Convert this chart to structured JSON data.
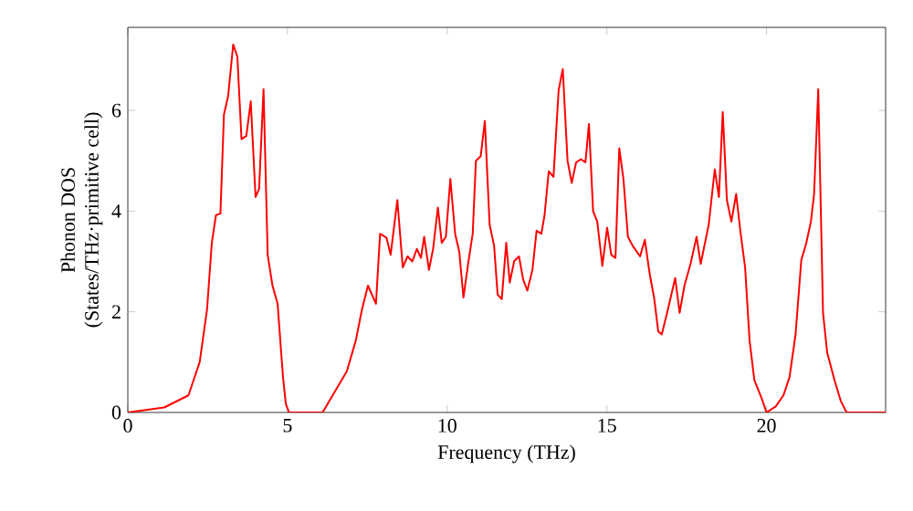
{
  "chart_data": {
    "type": "line",
    "xlabel": "Frequency (THz)",
    "ylabel": "Phonon DOS (States/THz·primitive cell)",
    "xlim": [
      0,
      23.73
    ],
    "ylim": [
      0,
      7.65
    ],
    "xticks": [
      0,
      5,
      10,
      15,
      20
    ],
    "yticks": [
      0,
      2,
      4,
      6
    ],
    "marker": "none",
    "line_style": "solid",
    "series": [
      {
        "color": "#ff0000",
        "x": [
          0,
          1.14,
          1.9,
          2.25,
          2.48,
          2.63,
          2.76,
          2.9,
          3.01,
          3.14,
          3.3,
          3.43,
          3.56,
          3.71,
          3.85,
          4.0,
          4.11,
          4.25,
          4.38,
          4.53,
          4.69,
          4.86,
          4.95,
          5.05,
          6.1,
          6.86,
          7.14,
          7.33,
          7.52,
          7.77,
          7.9,
          8.1,
          8.23,
          8.44,
          8.61,
          8.76,
          8.91,
          9.05,
          9.18,
          9.28,
          9.43,
          9.56,
          9.71,
          9.83,
          9.96,
          10.1,
          10.25,
          10.38,
          10.51,
          10.67,
          10.8,
          10.9,
          11.05,
          11.18,
          11.33,
          11.47,
          11.58,
          11.71,
          11.85,
          11.96,
          12.1,
          12.25,
          12.38,
          12.51,
          12.67,
          12.8,
          12.95,
          13.05,
          13.18,
          13.33,
          13.49,
          13.62,
          13.77,
          13.9,
          14.04,
          14.19,
          14.33,
          14.44,
          14.57,
          14.7,
          14.86,
          15.01,
          15.14,
          15.27,
          15.39,
          15.52,
          15.66,
          15.81,
          16.04,
          16.19,
          16.34,
          16.48,
          16.61,
          16.72,
          16.91,
          17.14,
          17.28,
          17.43,
          17.62,
          17.81,
          17.94,
          18.19,
          18.38,
          18.51,
          18.63,
          18.76,
          18.9,
          19.05,
          19.18,
          19.33,
          19.47,
          19.62,
          19.85,
          20.0,
          20.29,
          20.53,
          20.72,
          20.91,
          21.09,
          21.24,
          21.39,
          21.49,
          21.62,
          21.77,
          21.9,
          22.13,
          22.33,
          22.51,
          23.73
        ],
        "values": [
          0,
          0.1,
          0.34,
          1.0,
          2.04,
          3.37,
          3.92,
          3.95,
          5.92,
          6.28,
          7.31,
          7.07,
          5.43,
          5.49,
          6.18,
          4.28,
          4.44,
          6.42,
          3.13,
          2.52,
          2.16,
          0.7,
          0.16,
          0,
          0,
          0.82,
          1.43,
          2.04,
          2.52,
          2.16,
          3.55,
          3.47,
          3.13,
          4.22,
          2.88,
          3.1,
          3.0,
          3.25,
          3.07,
          3.49,
          2.83,
          3.25,
          4.07,
          3.37,
          3.49,
          4.64,
          3.55,
          3.19,
          2.28,
          3.01,
          3.55,
          5.0,
          5.09,
          5.79,
          3.73,
          3.31,
          2.34,
          2.25,
          3.37,
          2.58,
          3.01,
          3.1,
          2.64,
          2.42,
          2.83,
          3.61,
          3.55,
          3.92,
          4.79,
          4.68,
          6.4,
          6.82,
          5.0,
          4.56,
          4.97,
          5.03,
          4.97,
          5.73,
          4.0,
          3.79,
          2.91,
          3.67,
          3.13,
          3.07,
          5.25,
          4.64,
          3.49,
          3.31,
          3.1,
          3.43,
          2.76,
          2.28,
          1.61,
          1.55,
          2.04,
          2.67,
          1.98,
          2.52,
          2.95,
          3.49,
          2.95,
          3.73,
          4.83,
          4.28,
          5.97,
          4.22,
          3.79,
          4.34,
          3.61,
          2.88,
          1.43,
          0.64,
          0.28,
          0,
          0.12,
          0.34,
          0.7,
          1.55,
          3.03,
          3.35,
          3.79,
          4.34,
          6.42,
          1.98,
          1.19,
          0.64,
          0.22,
          0,
          0
        ]
      }
    ]
  }
}
